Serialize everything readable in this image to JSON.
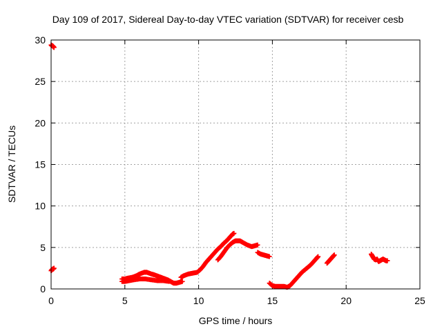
{
  "chart_data": {
    "type": "scatter",
    "title": "Day 109 of 2017, Sidereal Day-to-day VTEC variation (SDTVAR) for receiver cesb",
    "xlabel": "GPS time / hours",
    "ylabel": "SDTVAR / TECUs",
    "xlim": [
      0,
      25
    ],
    "ylim": [
      0,
      30
    ],
    "xticks": [
      0,
      5,
      10,
      15,
      20,
      25
    ],
    "yticks": [
      0,
      5,
      10,
      15,
      20,
      25,
      30
    ],
    "grid": true,
    "marker_color": "#ff0000",
    "segments": [
      {
        "name": "seg-early-high",
        "points": [
          [
            0.0,
            29.4
          ],
          [
            0.05,
            29.3
          ],
          [
            0.1,
            29.3
          ],
          [
            0.15,
            29.2
          ],
          [
            0.2,
            29.1
          ]
        ]
      },
      {
        "name": "seg-early-low",
        "points": [
          [
            0.0,
            2.2
          ],
          [
            0.05,
            2.3
          ],
          [
            0.1,
            2.4
          ],
          [
            0.15,
            2.4
          ],
          [
            0.2,
            2.5
          ]
        ]
      },
      {
        "name": "seg-morning-a",
        "points": [
          [
            4.8,
            1.2
          ],
          [
            5.0,
            1.2
          ],
          [
            5.2,
            1.3
          ],
          [
            5.5,
            1.4
          ],
          [
            5.8,
            1.6
          ],
          [
            6.0,
            1.8
          ],
          [
            6.3,
            2.0
          ],
          [
            6.5,
            2.0
          ],
          [
            6.8,
            1.8
          ],
          [
            7.0,
            1.7
          ],
          [
            7.3,
            1.5
          ],
          [
            7.6,
            1.3
          ],
          [
            7.9,
            1.1
          ],
          [
            8.1,
            0.9
          ],
          [
            8.3,
            0.7
          ],
          [
            8.5,
            0.7
          ],
          [
            8.7,
            0.8
          ],
          [
            8.9,
            0.9
          ]
        ]
      },
      {
        "name": "seg-morning-b",
        "points": [
          [
            4.8,
            0.9
          ],
          [
            5.0,
            0.9
          ],
          [
            5.3,
            1.0
          ],
          [
            5.6,
            1.1
          ],
          [
            6.0,
            1.2
          ],
          [
            6.4,
            1.2
          ],
          [
            6.8,
            1.1
          ],
          [
            7.2,
            1.0
          ],
          [
            7.6,
            1.0
          ],
          [
            8.0,
            0.9
          ]
        ]
      },
      {
        "name": "seg-midday",
        "points": [
          [
            8.8,
            1.4
          ],
          [
            9.0,
            1.6
          ],
          [
            9.3,
            1.8
          ],
          [
            9.6,
            1.9
          ],
          [
            9.9,
            2.0
          ],
          [
            10.1,
            2.3
          ],
          [
            10.3,
            2.7
          ],
          [
            10.5,
            3.2
          ],
          [
            10.7,
            3.6
          ],
          [
            10.9,
            4.0
          ],
          [
            11.1,
            4.4
          ],
          [
            11.3,
            4.8
          ],
          [
            11.5,
            5.1
          ],
          [
            11.7,
            5.5
          ],
          [
            11.9,
            5.8
          ],
          [
            12.1,
            6.2
          ],
          [
            12.3,
            6.6
          ],
          [
            12.4,
            6.7
          ]
        ]
      },
      {
        "name": "seg-midday-2",
        "points": [
          [
            11.3,
            3.5
          ],
          [
            11.5,
            3.9
          ],
          [
            11.7,
            4.4
          ],
          [
            11.9,
            4.9
          ],
          [
            12.1,
            5.3
          ],
          [
            12.3,
            5.6
          ],
          [
            12.5,
            5.8
          ],
          [
            12.8,
            5.8
          ],
          [
            13.0,
            5.6
          ],
          [
            13.3,
            5.3
          ],
          [
            13.6,
            5.1
          ],
          [
            13.8,
            5.2
          ],
          [
            14.0,
            5.3
          ]
        ]
      },
      {
        "name": "seg-afternoon-a",
        "points": [
          [
            14.0,
            4.4
          ],
          [
            14.2,
            4.2
          ],
          [
            14.4,
            4.1
          ],
          [
            14.6,
            4.0
          ],
          [
            14.8,
            3.9
          ]
        ]
      },
      {
        "name": "seg-afternoon-b",
        "points": [
          [
            14.8,
            0.7
          ],
          [
            15.0,
            0.4
          ],
          [
            15.2,
            0.3
          ],
          [
            15.4,
            0.3
          ],
          [
            15.6,
            0.3
          ],
          [
            15.8,
            0.3
          ],
          [
            16.0,
            0.2
          ],
          [
            16.2,
            0.4
          ],
          [
            16.4,
            0.8
          ],
          [
            16.6,
            1.2
          ],
          [
            16.8,
            1.6
          ],
          [
            17.0,
            2.0
          ],
          [
            17.2,
            2.3
          ],
          [
            17.4,
            2.6
          ],
          [
            17.6,
            2.9
          ],
          [
            17.8,
            3.3
          ],
          [
            18.0,
            3.7
          ],
          [
            18.1,
            3.9
          ]
        ]
      },
      {
        "name": "seg-evening-a",
        "points": [
          [
            18.7,
            3.1
          ],
          [
            18.8,
            3.3
          ],
          [
            18.9,
            3.5
          ],
          [
            19.0,
            3.7
          ],
          [
            19.1,
            3.9
          ],
          [
            19.2,
            4.1
          ]
        ]
      },
      {
        "name": "seg-evening-b",
        "points": [
          [
            21.7,
            4.2
          ],
          [
            21.8,
            3.9
          ],
          [
            21.9,
            3.6
          ],
          [
            22.0,
            3.5
          ],
          [
            22.1,
            3.6
          ],
          [
            22.2,
            3.3
          ],
          [
            22.3,
            3.4
          ],
          [
            22.4,
            3.5
          ],
          [
            22.5,
            3.6
          ],
          [
            22.6,
            3.5
          ],
          [
            22.7,
            3.4
          ],
          [
            22.8,
            3.4
          ]
        ]
      }
    ]
  }
}
